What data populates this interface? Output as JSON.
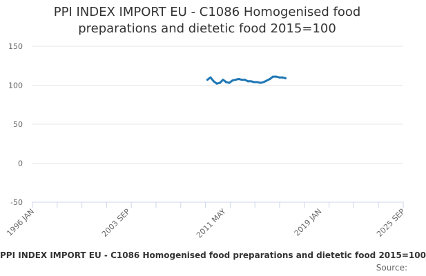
{
  "title_lines": [
    "PPI INDEX IMPORT EU - C1086 Homogenised food",
    "preparations and dietetic food 2015=100"
  ],
  "legend_label": "PPI INDEX IMPORT EU - C1086 Homogenised food preparations and dietetic food 2015=100",
  "credit": "Source:",
  "chart_data": {
    "type": "line",
    "title": "PPI INDEX IMPORT EU - C1086 Homogenised food preparations and dietetic food 2015=100",
    "xlabel": "",
    "ylabel": "",
    "x_range": [
      "1996-01",
      "2025-09"
    ],
    "x_ticks": [
      "1996 JAN",
      "2003 SEP",
      "2011 MAY",
      "2019 JAN",
      "2025 SEP"
    ],
    "y_ticks": [
      150,
      100,
      50,
      0,
      -50
    ],
    "ylim": [
      -50,
      150
    ],
    "grid": "horizontal",
    "legend": "bottom",
    "series_color": "#1f77b4",
    "series": [
      {
        "name": "PPI INDEX IMPORT EU - C1086 Homogenised food preparations and dietetic food 2015=100",
        "x": [
          "2010-01",
          "2010-04",
          "2010-07",
          "2010-10",
          "2011-01",
          "2011-04",
          "2011-07",
          "2011-10",
          "2012-01",
          "2012-04",
          "2012-07",
          "2012-10",
          "2013-01",
          "2013-04",
          "2013-07",
          "2013-10",
          "2014-01",
          "2014-04",
          "2014-07",
          "2014-10",
          "2015-01",
          "2015-04",
          "2015-07",
          "2015-10",
          "2016-01",
          "2016-04"
        ],
        "values": [
          107,
          110,
          105,
          102,
          103,
          107,
          104,
          103,
          106,
          107,
          108,
          107,
          107,
          105,
          105,
          104,
          104,
          103,
          104,
          106,
          108,
          111,
          111,
          110,
          110,
          109
        ]
      }
    ]
  }
}
